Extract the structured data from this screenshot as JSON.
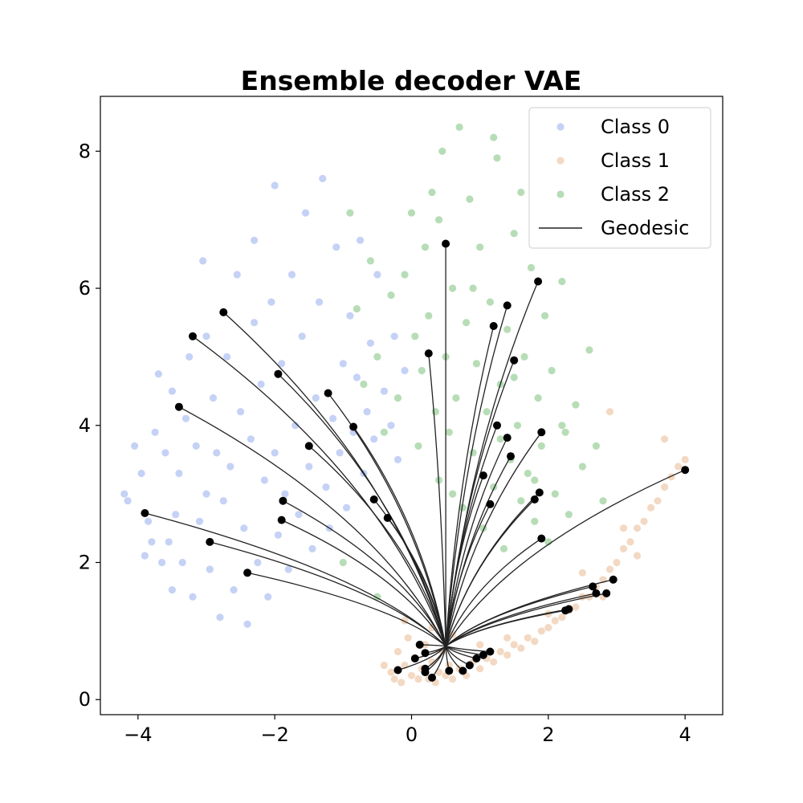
{
  "chart_data": {
    "type": "scatter",
    "title": "Ensemble decoder VAE",
    "xlabel": "",
    "ylabel": "",
    "xlim": [
      -4.55,
      4.55
    ],
    "ylim": [
      -0.22,
      8.8
    ],
    "x_ticks": [
      -4,
      -2,
      0,
      2,
      4
    ],
    "x_tick_labels": [
      "−4",
      "−2",
      "0",
      "2",
      "4"
    ],
    "y_ticks": [
      0,
      2,
      4,
      6,
      8
    ],
    "y_tick_labels": [
      "0",
      "2",
      "4",
      "6",
      "8"
    ],
    "grid": false,
    "legend_position": "top-right",
    "legend": [
      {
        "label": "Class 0",
        "kind": "marker",
        "series": "class0"
      },
      {
        "label": "Class 1",
        "kind": "marker",
        "series": "class1"
      },
      {
        "label": "Class 2",
        "kind": "marker",
        "series": "class2"
      },
      {
        "label": "Geodesic",
        "kind": "line",
        "series": "geodesic"
      }
    ],
    "series": [
      {
        "id": "class0",
        "name": "Class 0",
        "color": "#6f8fe8",
        "alpha": 0.4,
        "points": [
          [
            -4.2,
            3.0
          ],
          [
            -4.15,
            2.9
          ],
          [
            -4.05,
            3.7
          ],
          [
            -3.95,
            3.3
          ],
          [
            -3.9,
            2.1
          ],
          [
            -3.85,
            2.6
          ],
          [
            -3.8,
            2.3
          ],
          [
            -3.75,
            3.9
          ],
          [
            -3.7,
            4.75
          ],
          [
            -3.65,
            2.0
          ],
          [
            -3.6,
            3.6
          ],
          [
            -3.55,
            2.3
          ],
          [
            -3.5,
            1.6
          ],
          [
            -3.5,
            4.5
          ],
          [
            -3.45,
            2.7
          ],
          [
            -3.4,
            3.3
          ],
          [
            -3.35,
            2.0
          ],
          [
            -3.3,
            4.1
          ],
          [
            -3.25,
            5.0
          ],
          [
            -3.2,
            1.5
          ],
          [
            -3.15,
            3.7
          ],
          [
            -3.1,
            2.6
          ],
          [
            -3.05,
            6.4
          ],
          [
            -3.0,
            3.0
          ],
          [
            -3.0,
            5.3
          ],
          [
            -2.95,
            1.9
          ],
          [
            -2.9,
            4.4
          ],
          [
            -2.85,
            3.6
          ],
          [
            -2.8,
            1.2
          ],
          [
            -2.75,
            2.9
          ],
          [
            -2.7,
            5.0
          ],
          [
            -2.65,
            3.4
          ],
          [
            -2.6,
            1.6
          ],
          [
            -2.55,
            6.2
          ],
          [
            -2.5,
            4.2
          ],
          [
            -2.45,
            2.5
          ],
          [
            -2.4,
            1.1
          ],
          [
            -2.35,
            3.8
          ],
          [
            -2.3,
            5.5
          ],
          [
            -2.3,
            6.7
          ],
          [
            -2.25,
            2.0
          ],
          [
            -2.2,
            4.6
          ],
          [
            -2.15,
            3.2
          ],
          [
            -2.1,
            1.5
          ],
          [
            -2.05,
            5.8
          ],
          [
            -2.0,
            7.5
          ],
          [
            -2.0,
            3.6
          ],
          [
            -1.95,
            2.4
          ],
          [
            -1.9,
            4.9
          ],
          [
            -1.85,
            3.0
          ],
          [
            -1.8,
            1.9
          ],
          [
            -1.75,
            6.2
          ],
          [
            -1.7,
            4.0
          ],
          [
            -1.65,
            2.7
          ],
          [
            -1.6,
            5.3
          ],
          [
            -1.55,
            7.1
          ],
          [
            -1.5,
            3.4
          ],
          [
            -1.45,
            2.2
          ],
          [
            -1.4,
            4.4
          ],
          [
            -1.35,
            5.8
          ],
          [
            -1.3,
            7.6
          ],
          [
            -1.25,
            3.1
          ],
          [
            -1.2,
            2.5
          ],
          [
            -1.15,
            4.1
          ],
          [
            -1.1,
            6.6
          ],
          [
            -1.05,
            3.6
          ],
          [
            -1.0,
            4.9
          ],
          [
            -0.95,
            2.8
          ],
          [
            -0.9,
            5.6
          ],
          [
            -0.85,
            3.9
          ],
          [
            -0.8,
            4.7
          ],
          [
            -0.75,
            6.7
          ],
          [
            -0.7,
            3.3
          ],
          [
            -0.65,
            4.2
          ],
          [
            -0.6,
            5.2
          ],
          [
            -0.55,
            3.8
          ],
          [
            -0.5,
            6.2
          ],
          [
            -0.4,
            4.5
          ],
          [
            -0.3,
            4.0
          ],
          [
            -0.25,
            5.3
          ],
          [
            -0.2,
            3.5
          ],
          [
            -0.1,
            4.8
          ]
        ]
      },
      {
        "id": "class1",
        "name": "Class 1",
        "color": "#e0a06a",
        "alpha": 0.4,
        "points": [
          [
            -0.4,
            0.5
          ],
          [
            -0.3,
            0.4
          ],
          [
            -0.25,
            0.3
          ],
          [
            -0.2,
            0.7
          ],
          [
            -0.15,
            0.25
          ],
          [
            -0.1,
            0.5
          ],
          [
            -0.05,
            0.9
          ],
          [
            0.0,
            0.35
          ],
          [
            0.05,
            0.6
          ],
          [
            0.1,
            0.3
          ],
          [
            0.15,
            0.45
          ],
          [
            0.2,
            0.8
          ],
          [
            0.25,
            0.3
          ],
          [
            0.3,
            0.55
          ],
          [
            0.35,
            0.25
          ],
          [
            0.4,
            0.4
          ],
          [
            0.45,
            0.7
          ],
          [
            0.5,
            0.35
          ],
          [
            0.55,
            0.5
          ],
          [
            0.6,
            0.3
          ],
          [
            0.7,
            0.45
          ],
          [
            0.8,
            0.35
          ],
          [
            0.9,
            0.55
          ],
          [
            1.0,
            0.45
          ],
          [
            1.1,
            0.6
          ],
          [
            1.2,
            0.55
          ],
          [
            1.3,
            0.7
          ],
          [
            1.4,
            0.65
          ],
          [
            1.5,
            0.8
          ],
          [
            1.6,
            0.75
          ],
          [
            1.7,
            0.9
          ],
          [
            1.8,
            0.85
          ],
          [
            1.9,
            1.0
          ],
          [
            2.0,
            1.05
          ],
          [
            2.1,
            1.15
          ],
          [
            2.2,
            1.2
          ],
          [
            2.3,
            1.3
          ],
          [
            2.4,
            1.35
          ],
          [
            2.5,
            1.5
          ],
          [
            2.6,
            1.5
          ],
          [
            2.7,
            1.65
          ],
          [
            2.8,
            1.75
          ],
          [
            2.9,
            1.9
          ],
          [
            3.0,
            2.0
          ],
          [
            3.1,
            2.2
          ],
          [
            3.2,
            2.3
          ],
          [
            3.3,
            2.5
          ],
          [
            3.4,
            2.6
          ],
          [
            3.5,
            2.8
          ],
          [
            3.6,
            2.9
          ],
          [
            3.7,
            3.1
          ],
          [
            3.8,
            3.25
          ],
          [
            3.9,
            3.4
          ],
          [
            4.0,
            3.5
          ],
          [
            2.9,
            4.2
          ],
          [
            3.7,
            3.8
          ],
          [
            3.1,
            2.5
          ],
          [
            2.5,
            1.85
          ],
          [
            1.4,
            0.9
          ],
          [
            0.3,
            1.05
          ],
          [
            -0.1,
            1.15
          ],
          [
            0.6,
            0.95
          ],
          [
            1.0,
            0.8
          ],
          [
            2.0,
            1.25
          ],
          [
            2.8,
            1.5
          ],
          [
            3.3,
            2.1
          ]
        ]
      },
      {
        "id": "class2",
        "name": "Class 2",
        "color": "#4caa4c",
        "alpha": 0.4,
        "points": [
          [
            -1.0,
            2.0
          ],
          [
            -0.9,
            7.1
          ],
          [
            -0.8,
            5.7
          ],
          [
            -0.7,
            4.6
          ],
          [
            -0.6,
            6.4
          ],
          [
            -0.5,
            5.0
          ],
          [
            -0.4,
            3.9
          ],
          [
            -0.3,
            5.9
          ],
          [
            -0.2,
            4.4
          ],
          [
            -0.1,
            6.2
          ],
          [
            0.0,
            7.1
          ],
          [
            0.05,
            5.3
          ],
          [
            0.1,
            3.7
          ],
          [
            0.15,
            4.8
          ],
          [
            0.2,
            6.6
          ],
          [
            0.25,
            5.6
          ],
          [
            0.3,
            7.4
          ],
          [
            0.35,
            4.2
          ],
          [
            0.4,
            3.2
          ],
          [
            0.45,
            8.0
          ],
          [
            0.5,
            5.0
          ],
          [
            0.55,
            3.9
          ],
          [
            0.6,
            6.0
          ],
          [
            0.65,
            4.4
          ],
          [
            0.7,
            8.35
          ],
          [
            0.75,
            2.8
          ],
          [
            0.8,
            5.5
          ],
          [
            0.85,
            7.3
          ],
          [
            0.9,
            3.6
          ],
          [
            0.95,
            4.9
          ],
          [
            1.0,
            6.6
          ],
          [
            1.05,
            2.5
          ],
          [
            1.1,
            4.2
          ],
          [
            1.15,
            5.8
          ],
          [
            1.2,
            3.1
          ],
          [
            1.25,
            7.9
          ],
          [
            1.3,
            4.6
          ],
          [
            1.35,
            2.2
          ],
          [
            1.4,
            5.4
          ],
          [
            1.45,
            3.5
          ],
          [
            1.5,
            6.8
          ],
          [
            1.55,
            4.0
          ],
          [
            1.6,
            2.9
          ],
          [
            1.65,
            5.0
          ],
          [
            1.7,
            3.3
          ],
          [
            1.75,
            6.3
          ],
          [
            1.8,
            2.6
          ],
          [
            1.85,
            4.4
          ],
          [
            1.9,
            3.7
          ],
          [
            1.95,
            5.6
          ],
          [
            2.0,
            2.3
          ],
          [
            2.05,
            4.8
          ],
          [
            2.1,
            3.0
          ],
          [
            2.2,
            6.1
          ],
          [
            2.25,
            3.9
          ],
          [
            2.3,
            2.7
          ],
          [
            2.4,
            4.3
          ],
          [
            2.5,
            3.4
          ],
          [
            2.6,
            5.1
          ],
          [
            2.7,
            3.7
          ],
          [
            2.8,
            2.9
          ],
          [
            1.2,
            8.2
          ],
          [
            0.9,
            6.0
          ],
          [
            0.4,
            7.0
          ],
          [
            1.6,
            7.4
          ],
          [
            2.2,
            4.0
          ],
          [
            0.6,
            3.0
          ],
          [
            1.3,
            3.8
          ],
          [
            1.5,
            4.7
          ],
          [
            1.8,
            3.2
          ],
          [
            -0.5,
            1.5
          ]
        ]
      },
      {
        "id": "geodesic",
        "name": "Geodesic",
        "color": "#222222",
        "type": "line",
        "origin": [
          0.5,
          0.78
        ],
        "endpoints": [
          [
            -3.2,
            5.3
          ],
          [
            -2.75,
            5.65
          ],
          [
            -3.4,
            4.27
          ],
          [
            -1.95,
            4.75
          ],
          [
            -1.22,
            4.47
          ],
          [
            -0.85,
            3.98
          ],
          [
            -1.5,
            3.7
          ],
          [
            -1.88,
            2.9
          ],
          [
            -1.9,
            2.62
          ],
          [
            -3.9,
            2.72
          ],
          [
            -2.95,
            2.3
          ],
          [
            -2.4,
            1.85
          ],
          [
            -0.55,
            2.92
          ],
          [
            -0.35,
            2.65
          ],
          [
            0.25,
            5.05
          ],
          [
            0.5,
            6.65
          ],
          [
            1.2,
            5.45
          ],
          [
            1.85,
            6.1
          ],
          [
            1.4,
            5.75
          ],
          [
            1.5,
            4.95
          ],
          [
            1.25,
            4.0
          ],
          [
            1.4,
            3.82
          ],
          [
            1.9,
            3.9
          ],
          [
            1.45,
            3.55
          ],
          [
            1.05,
            3.27
          ],
          [
            1.15,
            2.85
          ],
          [
            1.8,
            2.92
          ],
          [
            1.87,
            3.02
          ],
          [
            1.9,
            2.35
          ],
          [
            4.0,
            3.35
          ],
          [
            2.95,
            1.75
          ],
          [
            2.65,
            1.65
          ],
          [
            2.85,
            1.55
          ],
          [
            2.7,
            1.55
          ],
          [
            2.3,
            1.32
          ],
          [
            2.25,
            1.3
          ],
          [
            1.15,
            0.7
          ],
          [
            1.05,
            0.65
          ],
          [
            0.95,
            0.6
          ],
          [
            0.85,
            0.5
          ],
          [
            0.75,
            0.42
          ],
          [
            0.55,
            0.42
          ],
          [
            0.3,
            0.32
          ],
          [
            0.2,
            0.45
          ],
          [
            0.2,
            0.4
          ],
          [
            -0.2,
            0.43
          ],
          [
            0.05,
            0.6
          ],
          [
            0.12,
            0.8
          ],
          [
            0.2,
            0.68
          ]
        ]
      }
    ]
  }
}
